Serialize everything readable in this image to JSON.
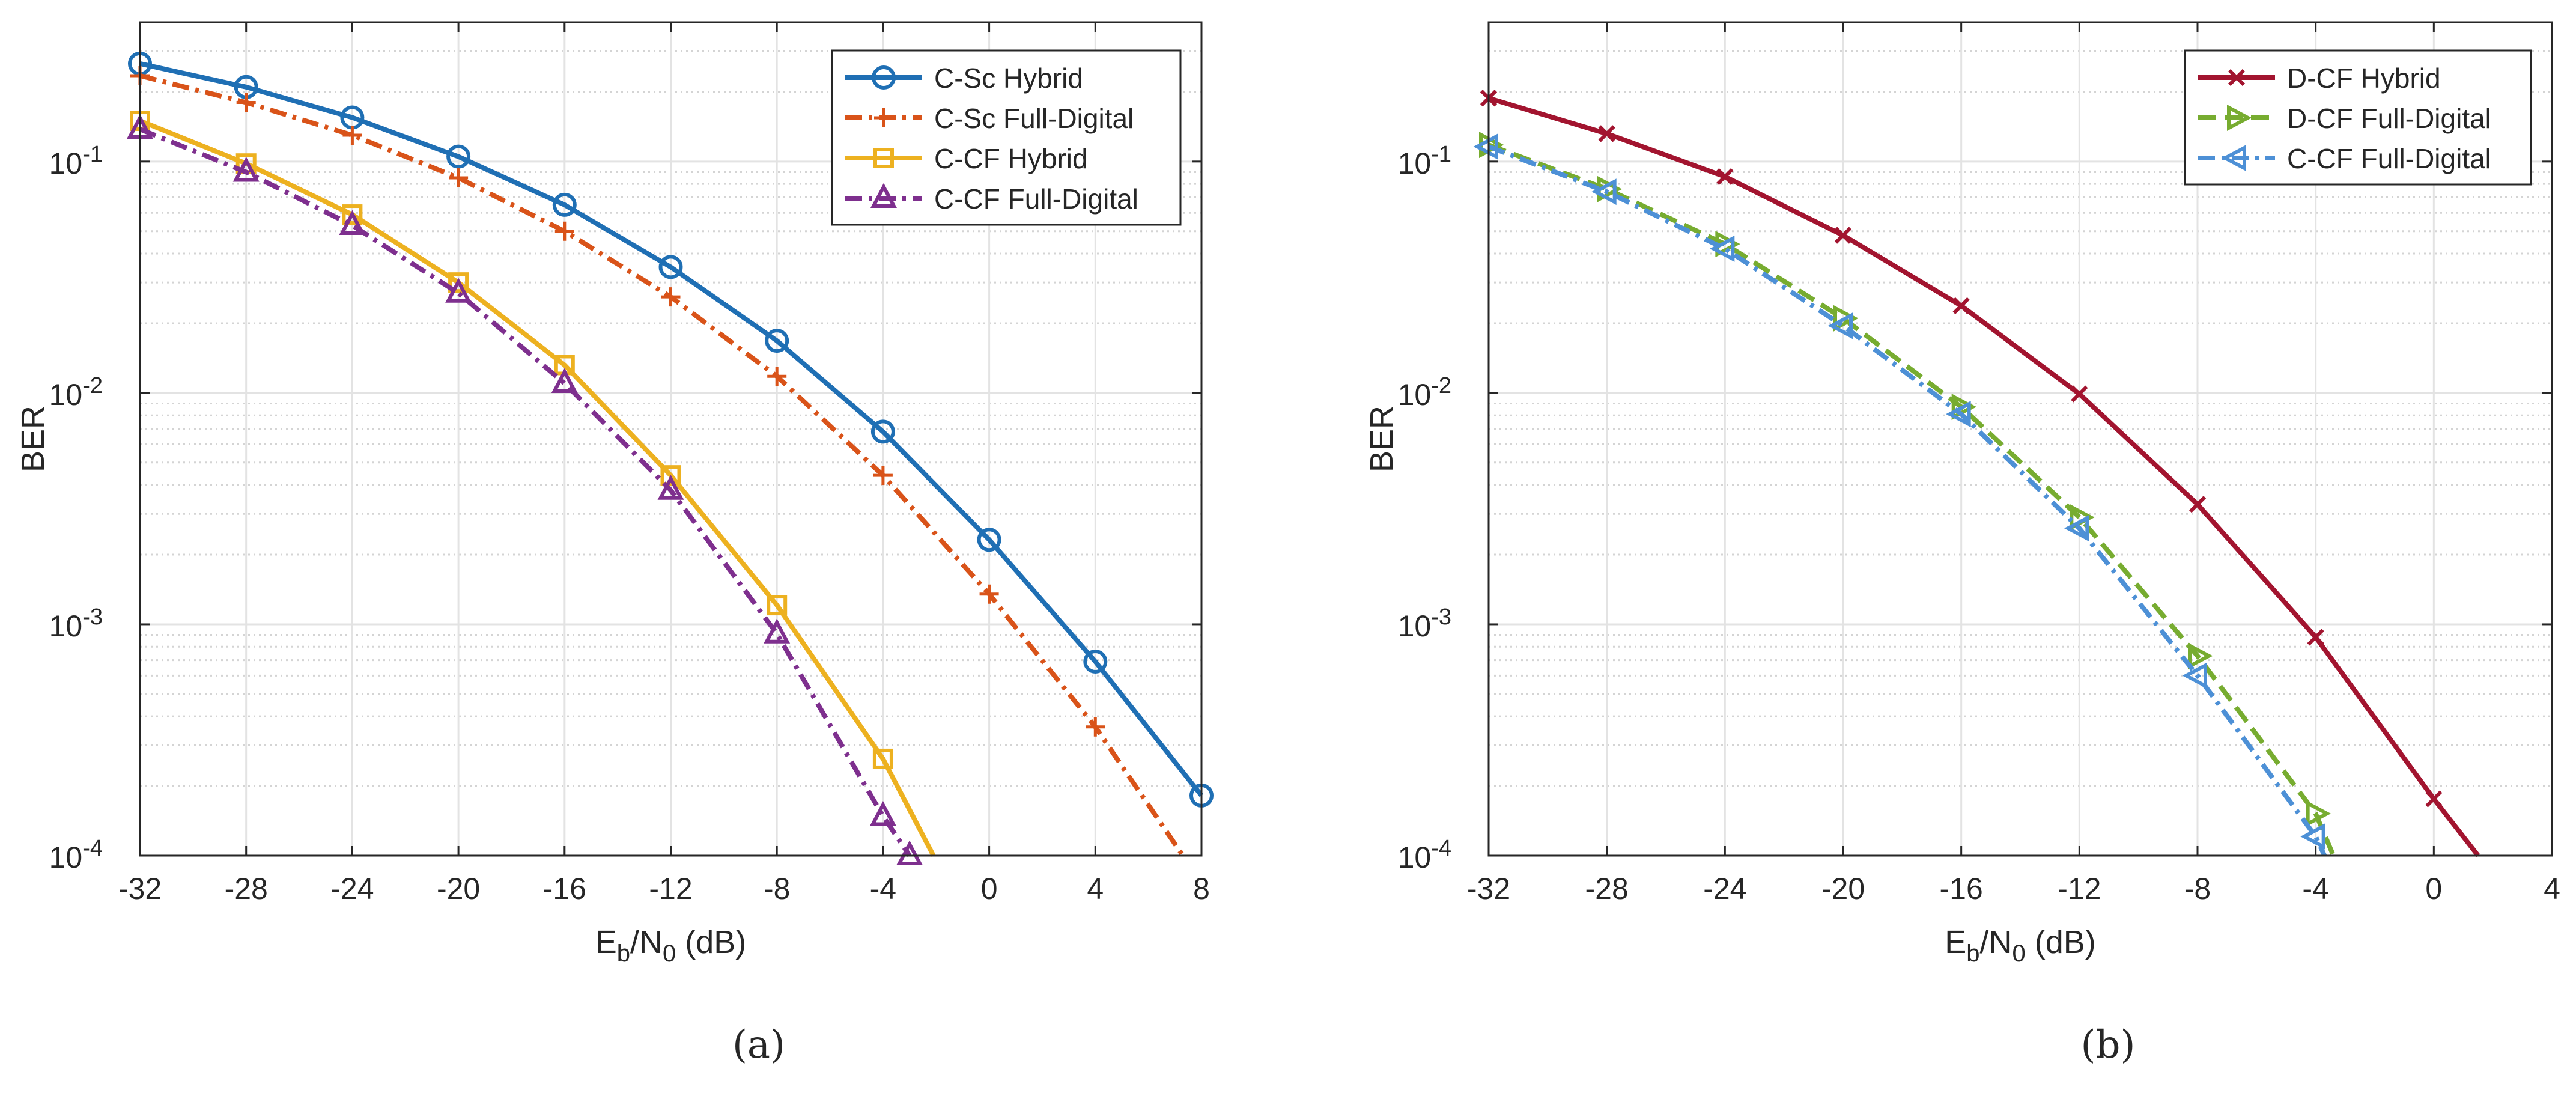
{
  "chart_data": [
    {
      "panel": "(a)",
      "type": "line",
      "yscale": "log",
      "xlabel": {
        "main": "E",
        "sub1": "b",
        "mid": "/N",
        "sub2": "0",
        "tail": " (dB)"
      },
      "ylabel": "BER",
      "xlim": [
        -32,
        8
      ],
      "ylim": [
        0.0001,
        0.4
      ],
      "xticks": [
        -32,
        -28,
        -24,
        -20,
        -16,
        -12,
        -8,
        -4,
        0,
        4,
        8
      ],
      "yticks": [
        {
          "value": 0.1,
          "base": "10",
          "exp": "-1"
        },
        {
          "value": 0.01,
          "base": "10",
          "exp": "-2"
        },
        {
          "value": 0.001,
          "base": "10",
          "exp": "-3"
        },
        {
          "value": 0.0001,
          "base": "10",
          "exp": "-4"
        }
      ],
      "grid": true,
      "legend": "top-right",
      "series": [
        {
          "name": "C-Sc Hybrid",
          "color": "#1f6fb4",
          "dash": "solid",
          "marker": "circle",
          "x": [
            -32,
            -28,
            -24,
            -20,
            -16,
            -12,
            -8,
            -4,
            0,
            4,
            8
          ],
          "y": [
            0.265,
            0.21,
            0.155,
            0.105,
            0.065,
            0.035,
            0.0168,
            0.0068,
            0.00232,
            0.00069,
            0.000182
          ]
        },
        {
          "name": "C-Sc Full-Digital",
          "color": "#d95319",
          "dash": "dashdot",
          "marker": "plus",
          "x": [
            -32,
            -28,
            -24,
            -20,
            -16,
            -12,
            -8,
            -4,
            0,
            4,
            7.3
          ],
          "y": [
            0.235,
            0.18,
            0.13,
            0.085,
            0.05,
            0.026,
            0.0118,
            0.0044,
            0.00135,
            0.00036,
            0.0001
          ]
        },
        {
          "name": "C-CF Hybrid",
          "color": "#edb120",
          "dash": "solid",
          "marker": "square",
          "x": [
            -32,
            -28,
            -24,
            -20,
            -16,
            -12,
            -8,
            -4,
            -2.1
          ],
          "y": [
            0.15,
            0.098,
            0.059,
            0.03,
            0.0132,
            0.0044,
            0.00121,
            0.000262,
            0.0001
          ]
        },
        {
          "name": "C-CF Full-Digital",
          "color": "#7e2f8e",
          "dash": "dashdot",
          "marker": "triangle-up",
          "x": [
            -32,
            -28,
            -24,
            -20,
            -16,
            -12,
            -8,
            -4,
            -3.0
          ],
          "y": [
            0.138,
            0.09,
            0.053,
            0.027,
            0.011,
            0.0038,
            0.00091,
            0.000148,
            0.0001
          ]
        }
      ]
    },
    {
      "panel": "(b)",
      "type": "line",
      "yscale": "log",
      "xlabel": {
        "main": "E",
        "sub1": "b",
        "mid": "/N",
        "sub2": "0",
        "tail": " (dB)"
      },
      "ylabel": "BER",
      "xlim": [
        -32,
        4
      ],
      "ylim": [
        0.0001,
        0.4
      ],
      "xticks": [
        -32,
        -28,
        -24,
        -20,
        -16,
        -12,
        -8,
        -4,
        0,
        4
      ],
      "yticks": [
        {
          "value": 0.1,
          "base": "10",
          "exp": "-1"
        },
        {
          "value": 0.01,
          "base": "10",
          "exp": "-2"
        },
        {
          "value": 0.001,
          "base": "10",
          "exp": "-3"
        },
        {
          "value": 0.0001,
          "base": "10",
          "exp": "-4"
        }
      ],
      "grid": true,
      "legend": "top-right",
      "series": [
        {
          "name": "D-CF Hybrid",
          "color": "#a2142f",
          "dash": "solid",
          "marker": "x",
          "x": [
            -32,
            -28,
            -24,
            -20,
            -16,
            -12,
            -8,
            -4,
            0,
            1.5
          ],
          "y": [
            0.188,
            0.132,
            0.086,
            0.048,
            0.0238,
            0.0099,
            0.0033,
            0.00088,
            0.000176,
            0.0001
          ]
        },
        {
          "name": "D-CF Full-Digital",
          "color": "#77ac30",
          "dash": "dashed",
          "marker": "triangle-right",
          "x": [
            -32,
            -28,
            -24,
            -20,
            -16,
            -12,
            -8,
            -4,
            -3.4
          ],
          "y": [
            0.118,
            0.076,
            0.044,
            0.021,
            0.0087,
            0.0029,
            0.00073,
            0.000152,
            0.0001
          ]
        },
        {
          "name": "C-CF Full-Digital",
          "color": "#4d90d6",
          "dash": "dashdot",
          "marker": "triangle-left",
          "x": [
            -32,
            -28,
            -24,
            -20,
            -16,
            -12,
            -8,
            -4,
            -3.7
          ],
          "y": [
            0.116,
            0.074,
            0.042,
            0.0195,
            0.0081,
            0.0026,
            0.0006,
            0.000121,
            0.0001
          ]
        }
      ]
    }
  ],
  "captions": [
    "(a)",
    "(b)"
  ]
}
